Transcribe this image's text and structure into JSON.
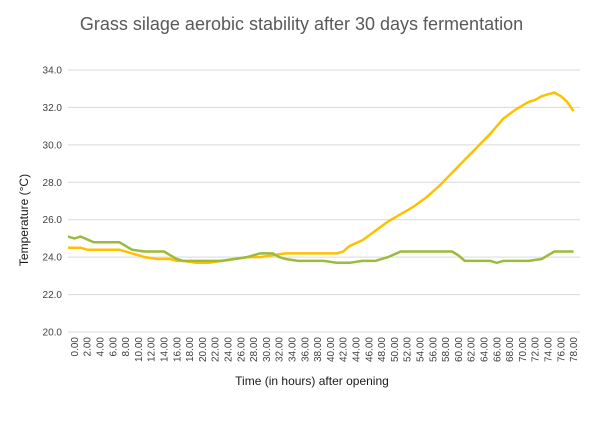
{
  "chart_data": {
    "type": "line",
    "title": "Grass silage aerobic stability after 30 days fermentation",
    "xlabel": "Time (in hours) after opening",
    "ylabel": "Temperature (°C)",
    "ylim": [
      20,
      34
    ],
    "yticks": [
      "20.0",
      "22.0",
      "24.0",
      "26.0",
      "28.0",
      "30.0",
      "32.0",
      "34.0"
    ],
    "xlim": [
      0,
      80
    ],
    "xticks": [
      "0.00",
      "2.00",
      "4.00",
      "6.00",
      "8.00",
      "10.00",
      "12.00",
      "14.00",
      "16.00",
      "18.00",
      "20.00",
      "22.00",
      "24.00",
      "26.00",
      "28.00",
      "30.00",
      "32.00",
      "34.00",
      "36.00",
      "38.00",
      "40.00",
      "42.00",
      "44.00",
      "46.00",
      "48.00",
      "50.00",
      "52.00",
      "54.00",
      "56.00",
      "58.00",
      "60.00",
      "62.00",
      "64.00",
      "66.00",
      "68.00",
      "70.00",
      "72.00",
      "74.00",
      "76.00",
      "78.00"
    ],
    "grid": "horizontal",
    "series": [
      {
        "color": "#ffc000",
        "x": [
          0,
          2,
          3,
          5,
          8,
          10,
          12,
          14,
          16,
          17,
          18,
          20,
          22,
          24,
          26,
          28,
          30,
          32,
          34,
          36,
          38,
          40,
          42,
          43,
          44,
          46,
          48,
          50,
          51,
          52,
          53,
          54,
          56,
          58,
          60,
          62,
          64,
          66,
          68,
          70,
          72,
          73,
          74,
          76,
          77,
          78,
          79
        ],
        "y": [
          24.5,
          24.5,
          24.4,
          24.4,
          24.4,
          24.2,
          24.0,
          23.9,
          23.9,
          23.8,
          23.8,
          23.7,
          23.7,
          23.8,
          23.9,
          24.0,
          24.0,
          24.1,
          24.2,
          24.2,
          24.2,
          24.2,
          24.2,
          24.3,
          24.6,
          24.9,
          25.4,
          25.9,
          26.1,
          26.3,
          26.5,
          26.7,
          27.2,
          27.8,
          28.5,
          29.2,
          29.9,
          30.6,
          31.4,
          31.9,
          32.3,
          32.4,
          32.6,
          32.8,
          32.6,
          32.3,
          31.8
        ]
      },
      {
        "color": "#9bbb3c",
        "x": [
          0,
          1,
          2,
          4,
          6,
          8,
          10,
          12,
          14,
          15,
          16,
          17,
          18,
          20,
          22,
          24,
          26,
          28,
          30,
          32,
          33,
          34,
          36,
          38,
          40,
          42,
          44,
          46,
          48,
          50,
          52,
          54,
          56,
          58,
          60,
          61,
          62,
          64,
          66,
          67,
          68,
          70,
          72,
          74,
          76,
          78,
          79
        ],
        "y": [
          25.1,
          25.0,
          25.1,
          24.8,
          24.8,
          24.8,
          24.4,
          24.3,
          24.3,
          24.3,
          24.1,
          23.9,
          23.8,
          23.8,
          23.8,
          23.8,
          23.9,
          24.0,
          24.2,
          24.2,
          24.0,
          23.9,
          23.8,
          23.8,
          23.8,
          23.7,
          23.7,
          23.8,
          23.8,
          24.0,
          24.3,
          24.3,
          24.3,
          24.3,
          24.3,
          24.1,
          23.8,
          23.8,
          23.8,
          23.7,
          23.8,
          23.8,
          23.8,
          23.9,
          24.3,
          24.3,
          24.3
        ]
      }
    ]
  }
}
